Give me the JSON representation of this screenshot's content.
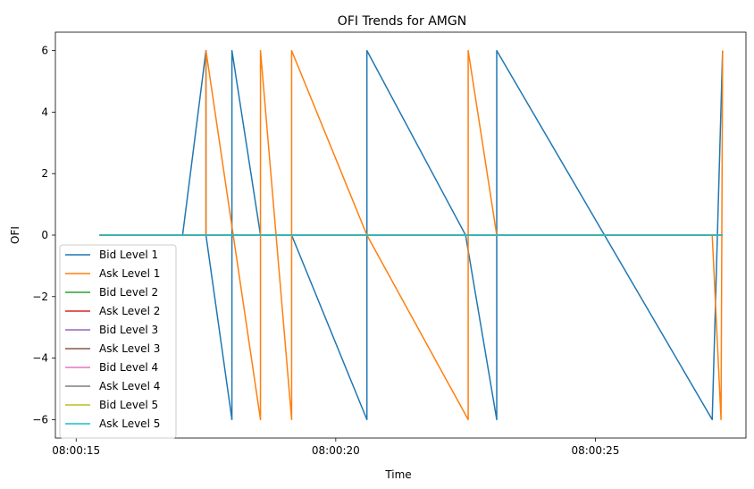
{
  "chart_data": {
    "type": "line",
    "title": "OFI Trends for AMGN",
    "xlabel": "Time",
    "ylabel": "OFI",
    "x_ticks": [
      {
        "t": 15.0,
        "label": "08:00:15"
      },
      {
        "t": 20.0,
        "label": "08:00:20"
      },
      {
        "t": 25.0,
        "label": "08:00:25"
      }
    ],
    "xlim": [
      14.6,
      27.9
    ],
    "ylim": [
      -6.6,
      6.6
    ],
    "y_ticks": [
      -6,
      -4,
      -2,
      0,
      2,
      4,
      6
    ],
    "y_tick_labels": [
      "−6",
      "−4",
      "−2",
      "0",
      "2",
      "4",
      "6"
    ],
    "grid": false,
    "legend": "bottom-left",
    "series": [
      {
        "name": "Bid Level 1",
        "color": "#1f77b4",
        "x": [
          15.45,
          17.05,
          17.5,
          17.5,
          18.0,
          18.0,
          18.55,
          19.15,
          19.15,
          20.6,
          20.6,
          22.5,
          23.1,
          23.1,
          27.25,
          27.45
        ],
        "y": [
          0,
          0,
          6,
          0,
          -6,
          6,
          0,
          0,
          0,
          -6,
          6,
          0,
          -6,
          6,
          -6,
          6
        ]
      },
      {
        "name": "Ask Level 1",
        "color": "#ff7f0e",
        "x": [
          15.45,
          17.5,
          17.5,
          17.5,
          18.55,
          18.55,
          19.15,
          19.15,
          20.6,
          22.55,
          22.55,
          23.1,
          23.1,
          27.25,
          27.42,
          27.45
        ],
        "y": [
          0,
          0,
          6,
          6,
          -6,
          6,
          -6,
          6,
          0,
          -6,
          6,
          0,
          0,
          0,
          -6,
          6
        ]
      },
      {
        "name": "Bid Level 2",
        "color": "#2ca02c",
        "x": [
          15.45,
          27.45
        ],
        "y": [
          0,
          0
        ]
      },
      {
        "name": "Ask Level 2",
        "color": "#d62728",
        "x": [
          15.45,
          27.45
        ],
        "y": [
          0,
          0
        ]
      },
      {
        "name": "Bid Level 3",
        "color": "#9467bd",
        "x": [
          15.45,
          27.45
        ],
        "y": [
          0,
          0
        ]
      },
      {
        "name": "Ask Level 3",
        "color": "#8c564b",
        "x": [
          15.45,
          27.45
        ],
        "y": [
          0,
          0
        ]
      },
      {
        "name": "Bid Level 4",
        "color": "#e377c2",
        "x": [
          15.45,
          27.45
        ],
        "y": [
          0,
          0
        ]
      },
      {
        "name": "Ask Level 4",
        "color": "#7f7f7f",
        "x": [
          15.45,
          27.45
        ],
        "y": [
          0,
          0
        ]
      },
      {
        "name": "Bid Level 5",
        "color": "#bcbd22",
        "x": [
          15.45,
          27.45
        ],
        "y": [
          0,
          0
        ]
      },
      {
        "name": "Ask Level 5",
        "color": "#17becf",
        "x": [
          15.45,
          27.45
        ],
        "y": [
          0,
          0
        ]
      }
    ]
  }
}
